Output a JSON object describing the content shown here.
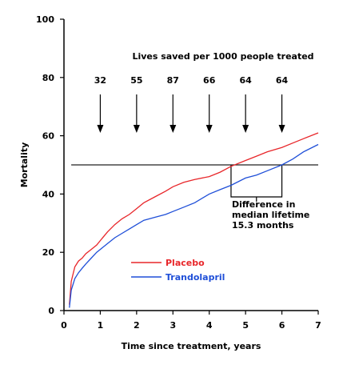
{
  "chart_data": {
    "type": "line",
    "title": "",
    "xlabel": "Time since treatment, years",
    "ylabel": "Mortality",
    "xlim": [
      0,
      7
    ],
    "ylim": [
      0,
      100
    ],
    "x_ticks": [
      "0",
      "1",
      "2",
      "3",
      "4",
      "5",
      "6",
      "7"
    ],
    "y_ticks": [
      "0",
      "20",
      "40",
      "60",
      "80",
      "100"
    ],
    "grid": false,
    "legend_position": "lower-center",
    "annotation_title": "Lives saved per 1000 people treated",
    "lives_saved": [
      {
        "x": 1,
        "label": "32"
      },
      {
        "x": 2,
        "label": "55"
      },
      {
        "x": 3,
        "label": "87"
      },
      {
        "x": 4,
        "label": "66"
      },
      {
        "x": 5,
        "label": "64"
      },
      {
        "x": 6,
        "label": "64"
      }
    ],
    "median_line": 50,
    "median_bracket": {
      "x_start": 4.6,
      "x_end": 6.0
    },
    "median_note": [
      "Difference in",
      "median lifetime",
      "15.3 months"
    ],
    "series": [
      {
        "name": "Placebo",
        "color": "#e8262a",
        "x": [
          0.15,
          0.2,
          0.3,
          0.4,
          0.5,
          0.6,
          0.75,
          0.9,
          1.0,
          1.2,
          1.4,
          1.6,
          1.8,
          2.0,
          2.2,
          2.5,
          2.8,
          3.0,
          3.3,
          3.6,
          4.0,
          4.3,
          4.6,
          5.0,
          5.3,
          5.6,
          6.0,
          6.3,
          6.6,
          7.0
        ],
        "values": [
          2,
          10,
          15,
          17,
          18,
          19.5,
          21,
          22.5,
          24,
          27,
          29.5,
          31.5,
          33,
          35,
          37,
          39,
          41,
          42.5,
          44,
          45,
          46,
          47.5,
          49.5,
          51.5,
          53,
          54.5,
          56,
          57.5,
          59,
          61
        ]
      },
      {
        "name": "Trandolapril",
        "color": "#1f4fd8",
        "x": [
          0.15,
          0.2,
          0.3,
          0.4,
          0.5,
          0.6,
          0.75,
          0.9,
          1.0,
          1.2,
          1.4,
          1.6,
          1.8,
          2.0,
          2.2,
          2.5,
          2.8,
          3.0,
          3.3,
          3.6,
          4.0,
          4.3,
          4.6,
          5.0,
          5.3,
          5.6,
          6.0,
          6.3,
          6.6,
          7.0
        ],
        "values": [
          1,
          7,
          11,
          13,
          14.5,
          16,
          18,
          20,
          21,
          23,
          25,
          26.5,
          28,
          29.5,
          31,
          32,
          33,
          34,
          35.5,
          37,
          40,
          41.5,
          43,
          45.5,
          46.5,
          48,
          50,
          52,
          54.5,
          57
        ]
      }
    ]
  }
}
